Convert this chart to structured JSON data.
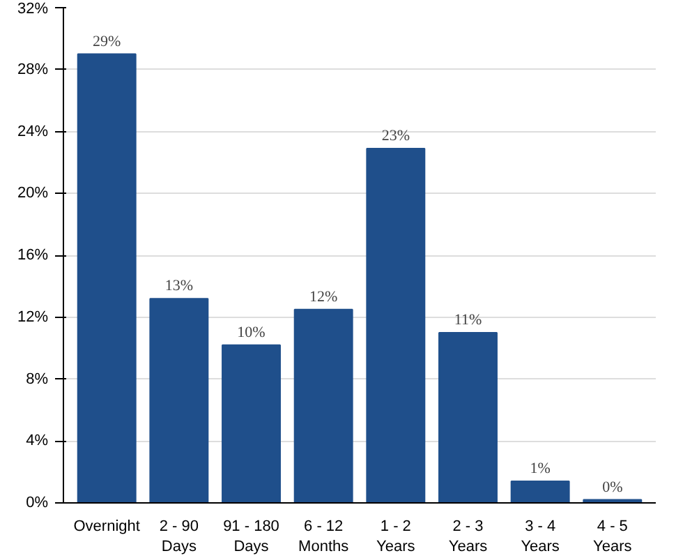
{
  "chart_data": {
    "type": "bar",
    "categories": [
      "Overnight",
      "2 - 90\nDays",
      "91 - 180\nDays",
      "6 - 12\nMonths",
      "1 - 2\nYears",
      "2 - 3\nYears",
      "3 - 4\nYears",
      "4 - 5\nYears"
    ],
    "values": [
      29,
      13.2,
      10.2,
      12.5,
      22.9,
      11,
      1.4,
      0.2
    ],
    "value_labels": [
      "29%",
      "13%",
      "10%",
      "12%",
      "23%",
      "11%",
      "1%",
      "0%"
    ],
    "color": "#1f4f8b",
    "ylim": [
      0,
      32
    ],
    "yticks": [
      {
        "value": 0,
        "label": "0%"
      },
      {
        "value": 4,
        "label": "4%"
      },
      {
        "value": 8,
        "label": "8%"
      },
      {
        "value": 12,
        "label": "12%"
      },
      {
        "value": 16,
        "label": "16%"
      },
      {
        "value": 20,
        "label": "20%"
      },
      {
        "value": 24,
        "label": "24%"
      },
      {
        "value": 28,
        "label": "28%"
      },
      {
        "value": 32,
        "label": "32%"
      }
    ],
    "grid": "y"
  }
}
